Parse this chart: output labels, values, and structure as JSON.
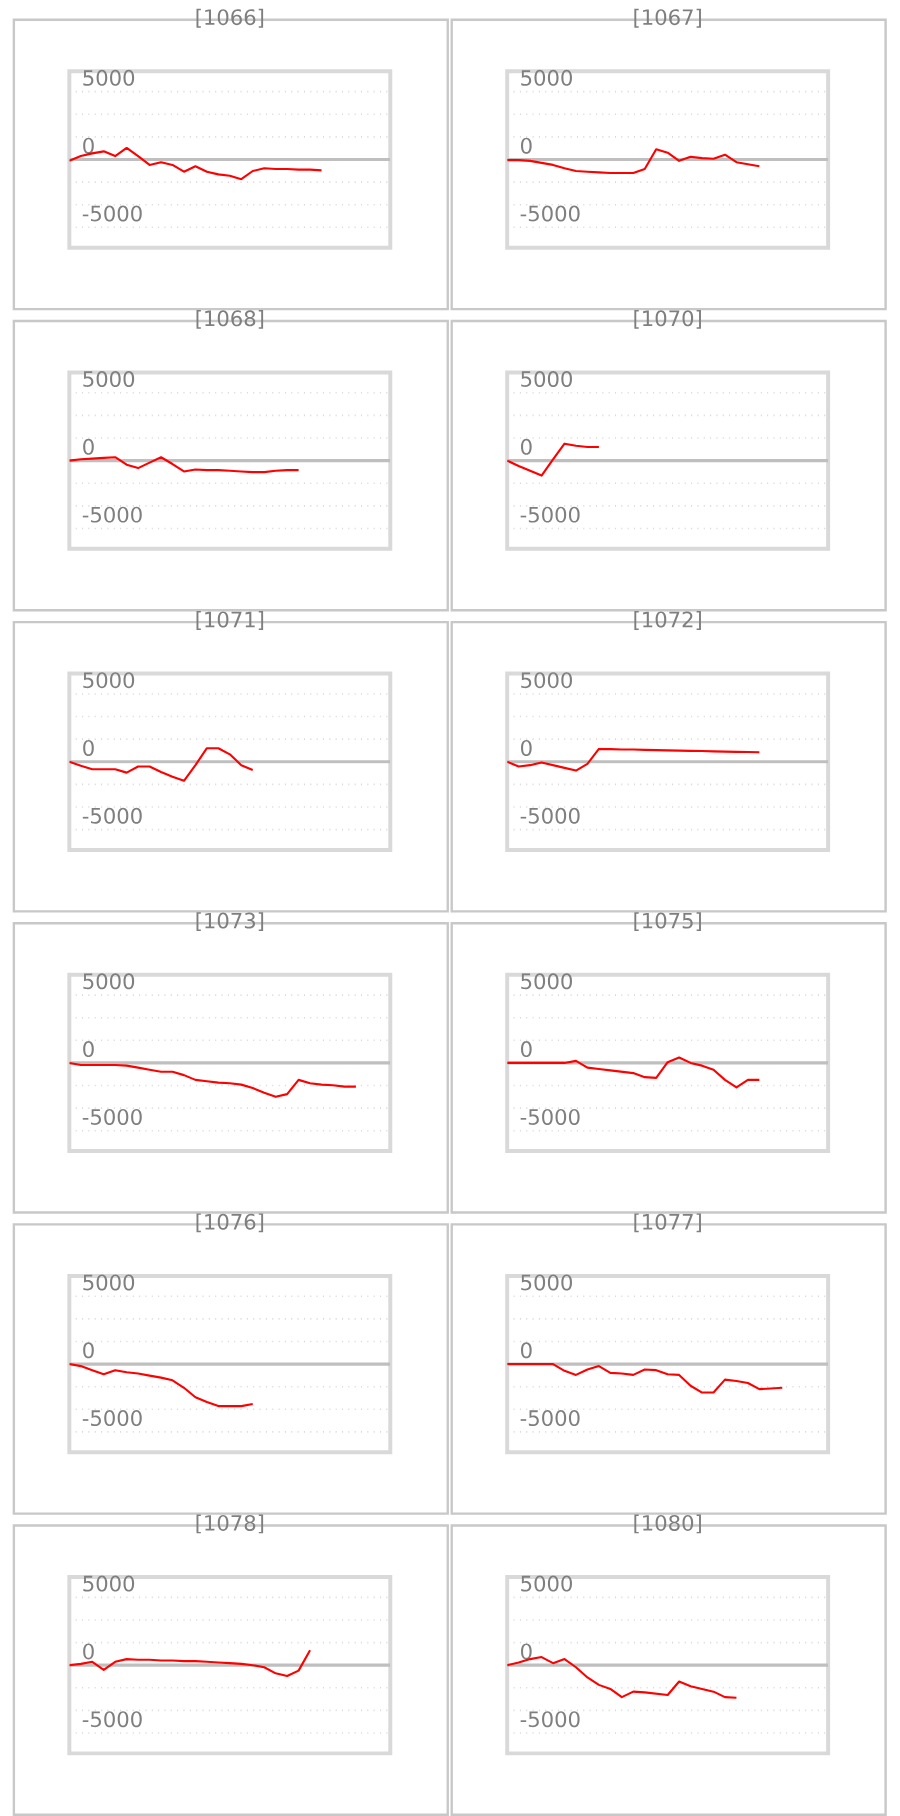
{
  "chart_data": [
    {
      "type": "line",
      "title": "[1066]",
      "categories": [
        null,
        null,
        null,
        null,
        null,
        null,
        null,
        null,
        null,
        null,
        null,
        null,
        null,
        null,
        null,
        null,
        null,
        null,
        null,
        null,
        null,
        null,
        null,
        null,
        null,
        null,
        null,
        null,
        null
      ],
      "series": [
        {
          "color": "#ff0000",
          "values": [
            -100,
            250,
            450,
            600,
            250,
            850,
            250,
            -400,
            -200,
            -400,
            -900,
            -500,
            -900,
            -1100,
            -1200,
            -1450,
            -850,
            -650,
            -700,
            -700,
            -750,
            -750,
            -800,
            null,
            null,
            null,
            null,
            null,
            null
          ]
        }
      ],
      "ylim": [
        -6500,
        6500
      ],
      "yticks": [
        5000,
        {
          "value": 3333,
          "label": null
        },
        {
          "value": 1667,
          "label": null
        },
        0,
        {
          "value": -1667,
          "label": null
        },
        {
          "value": -3333,
          "label": null
        },
        -5000
      ],
      "grid": "y",
      "tick_labels": "y",
      "ref_lines": [
        {
          "axis": "y",
          "value": 0,
          "color": "#bfbfbf"
        }
      ]
    },
    {
      "type": "line",
      "title": "[1067]",
      "categories": [
        null,
        null,
        null,
        null,
        null,
        null,
        null,
        null,
        null,
        null,
        null,
        null,
        null,
        null,
        null,
        null,
        null,
        null,
        null,
        null,
        null,
        null,
        null,
        null,
        null,
        null,
        null,
        null,
        null
      ],
      "series": [
        {
          "color": "#ff0000",
          "values": [
            -50,
            -50,
            -100,
            -250,
            -400,
            -650,
            -850,
            -900,
            -950,
            -1000,
            -1000,
            -1000,
            -700,
            750,
            500,
            -100,
            200,
            100,
            50,
            350,
            -200,
            -350,
            -500,
            null,
            null,
            null,
            null,
            null,
            null
          ]
        }
      ],
      "ylim": [
        -6500,
        6500
      ],
      "yticks": [
        5000,
        {
          "value": 3333,
          "label": null
        },
        {
          "value": 1667,
          "label": null
        },
        0,
        {
          "value": -1667,
          "label": null
        },
        {
          "value": -3333,
          "label": null
        },
        -5000
      ],
      "grid": "y",
      "tick_labels": "y",
      "ref_lines": [
        {
          "axis": "y",
          "value": 0,
          "color": "#bfbfbf"
        }
      ]
    },
    {
      "type": "line",
      "title": "[1068]",
      "categories": [
        null,
        null,
        null,
        null,
        null,
        null,
        null,
        null,
        null,
        null,
        null,
        null,
        null,
        null,
        null,
        null,
        null,
        null,
        null,
        null,
        null,
        null,
        null,
        null,
        null,
        null,
        null,
        null,
        null
      ],
      "series": [
        {
          "color": "#ff0000",
          "values": [
            0,
            100,
            150,
            200,
            250,
            -300,
            -550,
            -150,
            250,
            -250,
            -800,
            -650,
            -700,
            -700,
            -750,
            -800,
            -850,
            -850,
            -750,
            -700,
            -700,
            null,
            null,
            null,
            null,
            null,
            null,
            null,
            null
          ]
        }
      ],
      "ylim": [
        -6500,
        6500
      ],
      "yticks": [
        5000,
        {
          "value": 3333,
          "label": null
        },
        {
          "value": 1667,
          "label": null
        },
        0,
        {
          "value": -1667,
          "label": null
        },
        {
          "value": -3333,
          "label": null
        },
        -5000
      ],
      "grid": "y",
      "tick_labels": "y",
      "ref_lines": [
        {
          "axis": "y",
          "value": 0,
          "color": "#bfbfbf"
        }
      ]
    },
    {
      "type": "line",
      "title": "[1070]",
      "categories": [
        null,
        null,
        null,
        null,
        null,
        null,
        null,
        null,
        null,
        null,
        null,
        null,
        null,
        null,
        null,
        null,
        null,
        null,
        null,
        null,
        null,
        null,
        null,
        null,
        null,
        null,
        null,
        null,
        null
      ],
      "series": [
        {
          "color": "#ff0000",
          "values": [
            0,
            -400,
            -750,
            -1100,
            100,
            1250,
            1100,
            1000,
            1000,
            null,
            null,
            null,
            null,
            null,
            null,
            null,
            null,
            null,
            null,
            null,
            null,
            null,
            null,
            null,
            null,
            null,
            null,
            null,
            null
          ]
        }
      ],
      "ylim": [
        -6500,
        6500
      ],
      "yticks": [
        5000,
        {
          "value": 3333,
          "label": null
        },
        {
          "value": 1667,
          "label": null
        },
        0,
        {
          "value": -1667,
          "label": null
        },
        {
          "value": -3333,
          "label": null
        },
        -5000
      ],
      "grid": "y",
      "tick_labels": "y",
      "ref_lines": [
        {
          "axis": "y",
          "value": 0,
          "color": "#bfbfbf"
        }
      ]
    },
    {
      "type": "line",
      "title": "[1071]",
      "categories": [
        null,
        null,
        null,
        null,
        null,
        null,
        null,
        null,
        null,
        null,
        null,
        null,
        null,
        null,
        null,
        null,
        null,
        null,
        null,
        null,
        null,
        null,
        null,
        null,
        null,
        null,
        null,
        null,
        null
      ],
      "series": [
        {
          "color": "#ff0000",
          "values": [
            0,
            -300,
            -550,
            -550,
            -550,
            -800,
            -350,
            -350,
            -750,
            -1100,
            -1400,
            -250,
            1000,
            1000,
            550,
            -250,
            -600,
            null,
            null,
            null,
            null,
            null,
            null,
            null,
            null,
            null,
            null,
            null,
            null
          ]
        }
      ],
      "ylim": [
        -6500,
        6500
      ],
      "yticks": [
        5000,
        {
          "value": 3333,
          "label": null
        },
        {
          "value": 1667,
          "label": null
        },
        0,
        {
          "value": -1667,
          "label": null
        },
        {
          "value": -3333,
          "label": null
        },
        -5000
      ],
      "grid": "y",
      "tick_labels": "y",
      "ref_lines": [
        {
          "axis": "y",
          "value": 0,
          "color": "#bfbfbf"
        }
      ]
    },
    {
      "type": "line",
      "title": "[1072]",
      "categories": [
        null,
        null,
        null,
        null,
        null,
        null,
        null,
        null,
        null,
        null,
        null,
        null,
        null,
        null,
        null,
        null,
        null,
        null,
        null,
        null,
        null,
        null,
        null,
        null,
        null,
        null,
        null,
        null,
        null
      ],
      "series": [
        {
          "color": "#ff0000",
          "values": [
            0,
            -350,
            -250,
            -50,
            -250,
            -450,
            -650,
            -150,
            950,
            930,
            910,
            900,
            880,
            860,
            840,
            820,
            800,
            790,
            770,
            750,
            730,
            720,
            700,
            null,
            null,
            null,
            null,
            null,
            null
          ]
        }
      ],
      "ylim": [
        -6500,
        6500
      ],
      "yticks": [
        5000,
        {
          "value": 3333,
          "label": null
        },
        {
          "value": 1667,
          "label": null
        },
        0,
        {
          "value": -1667,
          "label": null
        },
        {
          "value": -3333,
          "label": null
        },
        -5000
      ],
      "grid": "y",
      "tick_labels": "y",
      "ref_lines": [
        {
          "axis": "y",
          "value": 0,
          "color": "#bfbfbf"
        }
      ]
    },
    {
      "type": "line",
      "title": "[1073]",
      "categories": [
        null,
        null,
        null,
        null,
        null,
        null,
        null,
        null,
        null,
        null,
        null,
        null,
        null,
        null,
        null,
        null,
        null,
        null,
        null,
        null,
        null,
        null,
        null,
        null,
        null,
        null,
        null,
        null,
        null
      ],
      "series": [
        {
          "color": "#ff0000",
          "values": [
            0,
            -150,
            -150,
            -150,
            -150,
            -200,
            -350,
            -500,
            -650,
            -650,
            -900,
            -1250,
            -1350,
            -1450,
            -1500,
            -1600,
            -1850,
            -2200,
            -2500,
            -2300,
            -1250,
            -1500,
            -1600,
            -1650,
            -1750,
            -1750,
            null,
            null,
            null
          ]
        }
      ],
      "ylim": [
        -6500,
        6500
      ],
      "yticks": [
        5000,
        {
          "value": 3333,
          "label": null
        },
        {
          "value": 1667,
          "label": null
        },
        0,
        {
          "value": -1667,
          "label": null
        },
        {
          "value": -3333,
          "label": null
        },
        -5000
      ],
      "grid": "y",
      "tick_labels": "y",
      "ref_lines": [
        {
          "axis": "y",
          "value": 0,
          "color": "#bfbfbf"
        }
      ]
    },
    {
      "type": "line",
      "title": "[1075]",
      "categories": [
        null,
        null,
        null,
        null,
        null,
        null,
        null,
        null,
        null,
        null,
        null,
        null,
        null,
        null,
        null,
        null,
        null,
        null,
        null,
        null,
        null,
        null,
        null,
        null,
        null,
        null,
        null,
        null,
        null
      ],
      "series": [
        {
          "color": "#ff0000",
          "values": [
            0,
            0,
            0,
            0,
            0,
            0,
            150,
            -350,
            -450,
            -550,
            -650,
            -750,
            -1050,
            -1100,
            50,
            400,
            0,
            -200,
            -500,
            -1250,
            -1800,
            -1250,
            -1250,
            null,
            null,
            null,
            null,
            null,
            null
          ]
        }
      ],
      "ylim": [
        -6500,
        6500
      ],
      "yticks": [
        5000,
        {
          "value": 3333,
          "label": null
        },
        {
          "value": 1667,
          "label": null
        },
        0,
        {
          "value": -1667,
          "label": null
        },
        {
          "value": -3333,
          "label": null
        },
        -5000
      ],
      "grid": "y",
      "tick_labels": "y",
      "ref_lines": [
        {
          "axis": "y",
          "value": 0,
          "color": "#bfbfbf"
        }
      ]
    },
    {
      "type": "line",
      "title": "[1076]",
      "categories": [
        null,
        null,
        null,
        null,
        null,
        null,
        null,
        null,
        null,
        null,
        null,
        null,
        null,
        null,
        null,
        null,
        null,
        null,
        null,
        null,
        null,
        null,
        null,
        null,
        null,
        null,
        null,
        null,
        null
      ],
      "series": [
        {
          "color": "#ff0000",
          "values": [
            0,
            -150,
            -450,
            -750,
            -450,
            -600,
            -700,
            -850,
            -1000,
            -1200,
            -1750,
            -2450,
            -2800,
            -3100,
            -3100,
            -3100,
            -2950,
            null,
            null,
            null,
            null,
            null,
            null,
            null,
            null,
            null,
            null,
            null,
            null
          ]
        }
      ],
      "ylim": [
        -6500,
        6500
      ],
      "yticks": [
        5000,
        {
          "value": 3333,
          "label": null
        },
        {
          "value": 1667,
          "label": null
        },
        0,
        {
          "value": -1667,
          "label": null
        },
        {
          "value": -3333,
          "label": null
        },
        -5000
      ],
      "grid": "y",
      "tick_labels": "y",
      "ref_lines": [
        {
          "axis": "y",
          "value": 0,
          "color": "#bfbfbf"
        }
      ]
    },
    {
      "type": "line",
      "title": "[1077]",
      "categories": [
        null,
        null,
        null,
        null,
        null,
        null,
        null,
        null,
        null,
        null,
        null,
        null,
        null,
        null,
        null,
        null,
        null,
        null,
        null,
        null,
        null,
        null,
        null,
        null,
        null,
        null,
        null,
        null,
        null
      ],
      "series": [
        {
          "color": "#ff0000",
          "values": [
            0,
            0,
            0,
            0,
            0,
            -500,
            -800,
            -400,
            -150,
            -650,
            -700,
            -800,
            -400,
            -450,
            -750,
            -800,
            -1600,
            -2100,
            -2100,
            -1150,
            -1250,
            -1400,
            -1850,
            -1800,
            -1750,
            null,
            null,
            null,
            null
          ]
        }
      ],
      "ylim": [
        -6500,
        6500
      ],
      "yticks": [
        5000,
        {
          "value": 3333,
          "label": null
        },
        {
          "value": 1667,
          "label": null
        },
        0,
        {
          "value": -1667,
          "label": null
        },
        {
          "value": -3333,
          "label": null
        },
        -5000
      ],
      "grid": "y",
      "tick_labels": "y",
      "ref_lines": [
        {
          "axis": "y",
          "value": 0,
          "color": "#bfbfbf"
        }
      ]
    },
    {
      "type": "line",
      "title": "[1078]",
      "categories": [
        null,
        null,
        null,
        null,
        null,
        null,
        null,
        null,
        null,
        null,
        null,
        null,
        null,
        null,
        null,
        null,
        null,
        null,
        null,
        null,
        null,
        null,
        null,
        null,
        null,
        null,
        null,
        null,
        null
      ],
      "series": [
        {
          "color": "#ff0000",
          "values": [
            0,
            100,
            250,
            -350,
            250,
            450,
            400,
            400,
            350,
            350,
            300,
            300,
            250,
            200,
            150,
            100,
            0,
            -150,
            -600,
            -800,
            -400,
            1100,
            null,
            null,
            null,
            null,
            null,
            null,
            null
          ]
        }
      ],
      "ylim": [
        -6500,
        6500
      ],
      "yticks": [
        5000,
        {
          "value": 3333,
          "label": null
        },
        {
          "value": 1667,
          "label": null
        },
        0,
        {
          "value": -1667,
          "label": null
        },
        {
          "value": -3333,
          "label": null
        },
        -5000
      ],
      "grid": "y",
      "tick_labels": "y",
      "ref_lines": [
        {
          "axis": "y",
          "value": 0,
          "color": "#bfbfbf"
        }
      ]
    },
    {
      "type": "line",
      "title": "[1080]",
      "categories": [
        null,
        null,
        null,
        null,
        null,
        null,
        null,
        null,
        null,
        null,
        null,
        null,
        null,
        null,
        null,
        null,
        null,
        null,
        null,
        null,
        null,
        null,
        null,
        null,
        null,
        null,
        null,
        null,
        null
      ],
      "series": [
        {
          "color": "#ff0000",
          "values": [
            0,
            200,
            450,
            600,
            150,
            450,
            -150,
            -900,
            -1450,
            -1750,
            -2350,
            -1950,
            -2000,
            -2100,
            -2200,
            -1200,
            -1550,
            -1750,
            -1950,
            -2350,
            -2400,
            null,
            null,
            null,
            null,
            null,
            null,
            null,
            null
          ]
        }
      ],
      "ylim": [
        -6500,
        6500
      ],
      "yticks": [
        5000,
        {
          "value": 3333,
          "label": null
        },
        {
          "value": 1667,
          "label": null
        },
        0,
        {
          "value": -1667,
          "label": null
        },
        {
          "value": -3333,
          "label": null
        },
        -5000
      ],
      "grid": "y",
      "tick_labels": "y",
      "ref_lines": [
        {
          "axis": "y",
          "value": 0,
          "color": "#bfbfbf"
        }
      ]
    }
  ]
}
